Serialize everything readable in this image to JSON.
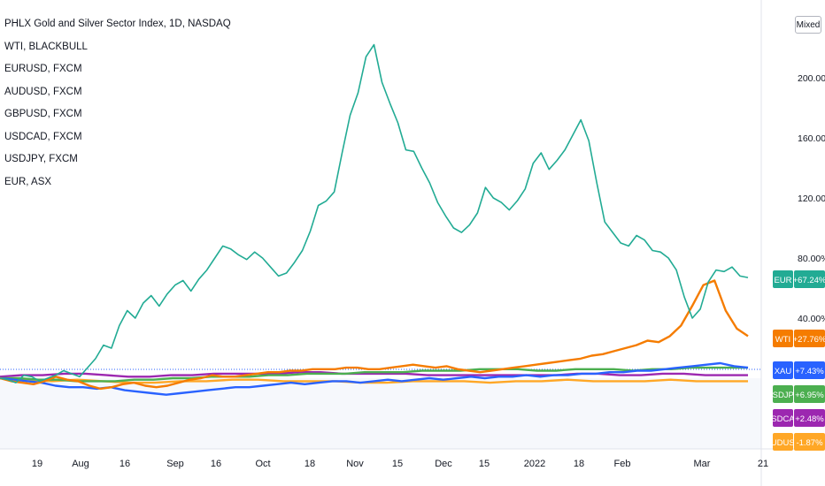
{
  "chart_data": {
    "type": "line",
    "title": "PHLX Gold and Silver Sector Index, 1D, NASDAQ",
    "x_tick_labels": [
      "19",
      "Aug",
      "16",
      "Sep",
      "16",
      "Oct",
      "18",
      "Nov",
      "15",
      "Dec",
      "15",
      "2022",
      "18",
      "Feb",
      "Mar",
      "21"
    ],
    "y_tick_labels": [
      "200.00%",
      "160.00%",
      "120.00%",
      "80.00%",
      "40.00%"
    ],
    "ylim": [
      -20,
      230
    ],
    "scale_mode": "Mixed",
    "legend_placement": "top-left",
    "legend_entries": [
      "WTI, BLACKBULL",
      "EURUSD, FXCM",
      "AUDUSD, FXCM",
      "GBPUSD, FXCM",
      "USDCAD, FXCM",
      "USDJPY, FXCM",
      "EUR, ASX"
    ],
    "series": [
      {
        "name": "EUR",
        "label": "+67.24%",
        "last": 67.24,
        "color": "#22ab94",
        "values": [
          0,
          -1,
          -3,
          2,
          1,
          -2,
          0,
          2,
          5,
          3,
          1,
          7,
          13,
          22,
          20,
          35,
          45,
          40,
          50,
          55,
          48,
          56,
          62,
          65,
          58,
          66,
          72,
          80,
          88,
          86,
          82,
          79,
          84,
          80,
          74,
          68,
          70,
          77,
          85,
          98,
          115,
          118,
          124,
          150,
          175,
          190,
          214,
          222,
          197,
          183,
          170,
          152,
          151,
          140,
          130,
          117,
          108,
          100,
          97,
          102,
          110,
          127,
          120,
          117,
          112,
          118,
          126,
          143,
          150,
          139,
          145,
          152,
          162,
          172,
          158,
          130,
          104,
          97,
          90,
          88,
          95,
          92,
          85,
          84,
          80,
          72,
          54,
          40,
          46,
          64,
          72,
          71,
          74,
          68,
          67
        ]
      },
      {
        "name": "WTI",
        "label": "+27.76%",
        "last": 27.76,
        "color": "#f57c00",
        "values": [
          0,
          -2,
          -3,
          -4,
          -2,
          1,
          -1,
          -2,
          -5,
          -7,
          -6,
          -4,
          -3,
          -5,
          -6,
          -5,
          -3,
          -1,
          0,
          2,
          1,
          1,
          2,
          3,
          4,
          4,
          5,
          5,
          6,
          6,
          6,
          7,
          7,
          6,
          6,
          7,
          8,
          9,
          8,
          7,
          8,
          6,
          5,
          4,
          5,
          6,
          7,
          8,
          9,
          10,
          11,
          12,
          13,
          15,
          16,
          18,
          20,
          22,
          25,
          24,
          28,
          35,
          48,
          62,
          65,
          45,
          33,
          28
        ]
      },
      {
        "name": "XAU",
        "label": "+7.43%",
        "last": 7.43,
        "color": "#2962ff",
        "values": [
          0,
          -1,
          -2,
          -3,
          -5,
          -6,
          -6,
          -7,
          -6,
          -8,
          -9,
          -10,
          -11,
          -10,
          -9,
          -8,
          -7,
          -6,
          -6,
          -5,
          -4,
          -3,
          -4,
          -3,
          -2,
          -2,
          -3,
          -2,
          -1,
          -2,
          -1,
          0,
          -1,
          0,
          1,
          0,
          1,
          1,
          2,
          1,
          2,
          2,
          3,
          3,
          4,
          4,
          5,
          5,
          6,
          7,
          8,
          9,
          10,
          8,
          7
        ]
      },
      {
        "name": "USDJPY",
        "label": "+6.95%",
        "last": 6.95,
        "color": "#4caf50",
        "values": [
          0,
          0,
          -1,
          -1,
          -2,
          -2,
          -2,
          -1,
          -1,
          0,
          0,
          1,
          1,
          1,
          2,
          2,
          3,
          3,
          3,
          4,
          4,
          4,
          5,
          5,
          5,
          6,
          6,
          6,
          5,
          5,
          6,
          6,
          6,
          5,
          6,
          6,
          7,
          7,
          7,
          7
        ]
      },
      {
        "name": "USDCAD",
        "label": "+2.48%",
        "last": 2.48,
        "color": "#9c27b0",
        "values": [
          1,
          2,
          2,
          3,
          3,
          2,
          1,
          1,
          2,
          2,
          3,
          3,
          3,
          3,
          4,
          4,
          3,
          3,
          3,
          3,
          2,
          2,
          2,
          2,
          2,
          2,
          2,
          3,
          3,
          2,
          2,
          3,
          3,
          2,
          2,
          2
        ]
      },
      {
        "name": "AUDUSD",
        "label": "-1.87%",
        "last": -1.87,
        "color": "#ffa726",
        "values": [
          0,
          -1,
          -2,
          -1,
          -2,
          -3,
          -3,
          -2,
          -2,
          -1,
          -1,
          -2,
          -2,
          -2,
          -3,
          -3,
          -2,
          -2,
          -2,
          -3,
          -2,
          -2,
          -1,
          -2,
          -2,
          -2,
          -1,
          -2,
          -2,
          -2
        ]
      }
    ]
  }
}
